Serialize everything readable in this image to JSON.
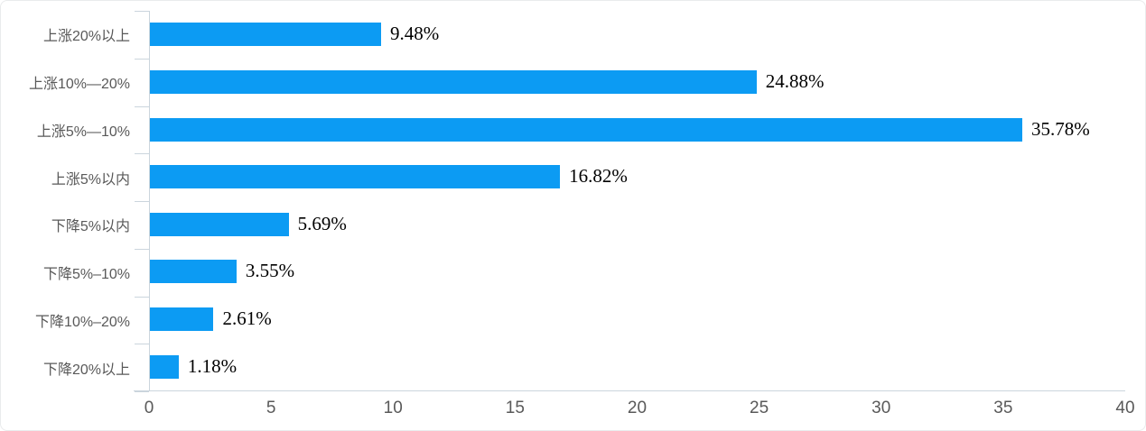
{
  "chart_data": {
    "type": "bar",
    "orientation": "horizontal",
    "title": "",
    "xlabel": "",
    "ylabel": "",
    "grid": false,
    "legend": null,
    "categories": [
      "上涨20%以上",
      "上涨10%—20%",
      "上涨5%—10%",
      "上涨5%以内",
      "下降5%以内",
      "下降5%–10%",
      "下降10%–20%",
      "下降20%以上"
    ],
    "values": [
      9.48,
      24.88,
      35.78,
      16.82,
      5.69,
      3.55,
      2.61,
      1.18
    ],
    "value_labels": [
      "9.48%",
      "24.88%",
      "35.78%",
      "16.82%",
      "5.69%",
      "3.55%",
      "2.61%",
      "1.18%"
    ],
    "x_ticks": [
      0,
      5,
      10,
      15,
      20,
      25,
      30,
      35,
      40
    ],
    "xlim": [
      0,
      40
    ],
    "colors": {
      "bar": "#0c9bf3",
      "axis": "#cbd5dd",
      "labels": "#595959",
      "values": "#000000",
      "background": "#ffffff",
      "card_border": "#e9ebec"
    }
  }
}
